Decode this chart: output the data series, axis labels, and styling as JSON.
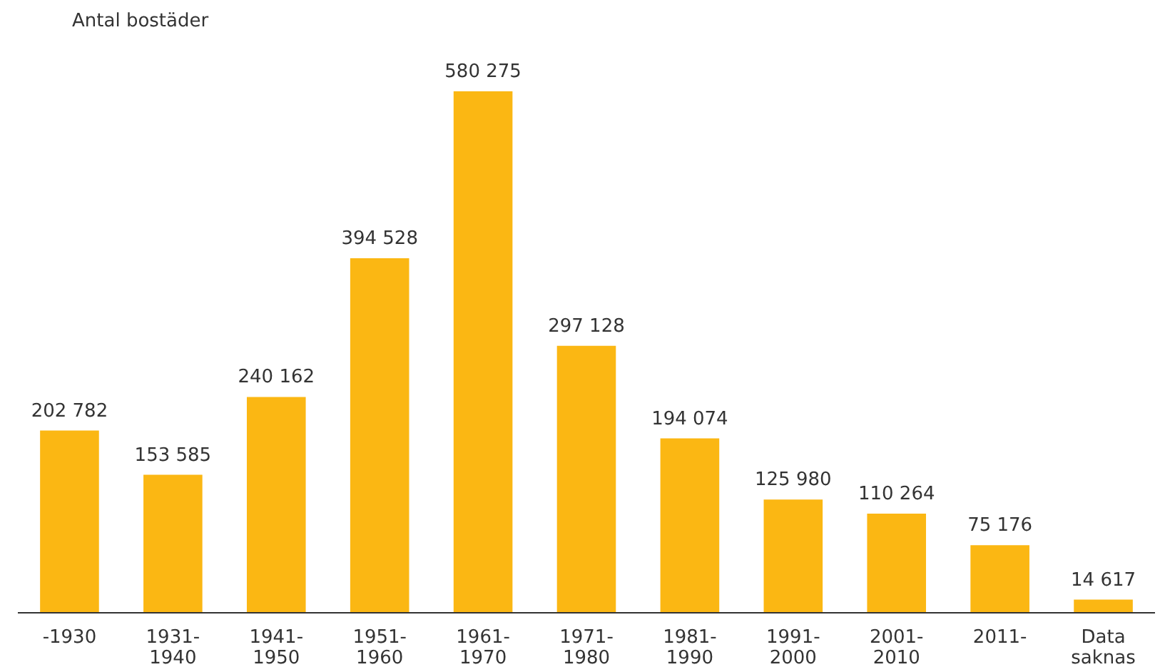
{
  "chart_data": {
    "type": "bar",
    "ylabel": "Antal bostäder",
    "categories": [
      "-1930",
      "1931-\n1940",
      "1941-\n1950",
      "1951-\n1960",
      "1961-\n1970",
      "1971-\n1980",
      "1981-\n1990",
      "1991-\n2000",
      "2001-\n2010",
      "2011-",
      "Data\nsaknas"
    ],
    "values": [
      202782,
      153585,
      240162,
      394528,
      580275,
      297128,
      194074,
      125980,
      110264,
      75176,
      14617
    ],
    "value_labels": [
      "202 782",
      "153 585",
      "240 162",
      "394 528",
      "580 275",
      "297 128",
      "194 074",
      "125 980",
      "110 264",
      "75 176",
      "14 617"
    ],
    "color": "#fbb713",
    "grid": false
  }
}
